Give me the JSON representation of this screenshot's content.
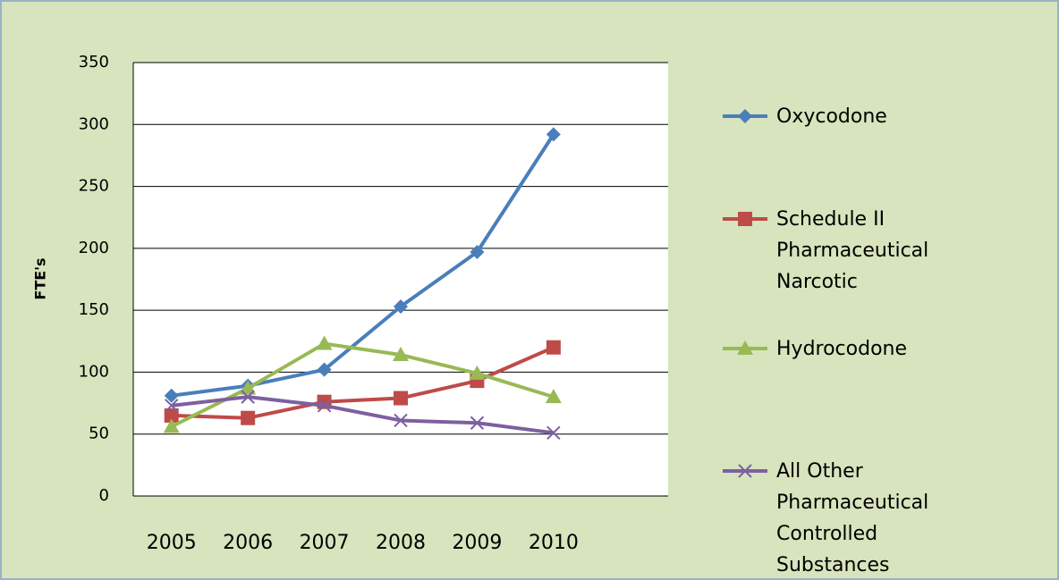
{
  "chart_data": {
    "type": "line",
    "y_label": "FTE's",
    "categories": [
      "2005",
      "2006",
      "2007",
      "2008",
      "2009",
      "2010",
      null
    ],
    "series": [
      {
        "name": "Oxycodone",
        "color": "#4a7ebb",
        "marker": "diamond",
        "values": [
          81,
          89,
          102,
          153,
          197,
          292,
          null
        ]
      },
      {
        "name": "Schedule II Pharmaceutical Narcotic",
        "color": "#be4b48",
        "marker": "square",
        "values": [
          65,
          63,
          76,
          79,
          93,
          120,
          null
        ]
      },
      {
        "name": "Hydrocodone",
        "color": "#98b954",
        "marker": "triangle",
        "values": [
          56,
          87,
          123,
          114,
          99,
          80,
          null
        ]
      },
      {
        "name": "All Other Pharmaceutical Controlled Substances",
        "color": "#7d60a0",
        "marker": "x",
        "values": [
          73,
          80,
          73,
          61,
          59,
          51,
          null
        ]
      }
    ],
    "ylim": [
      0,
      350
    ],
    "yticks": [
      0,
      50,
      100,
      150,
      200,
      250,
      300,
      350
    ],
    "grid": true,
    "legend": "right"
  }
}
